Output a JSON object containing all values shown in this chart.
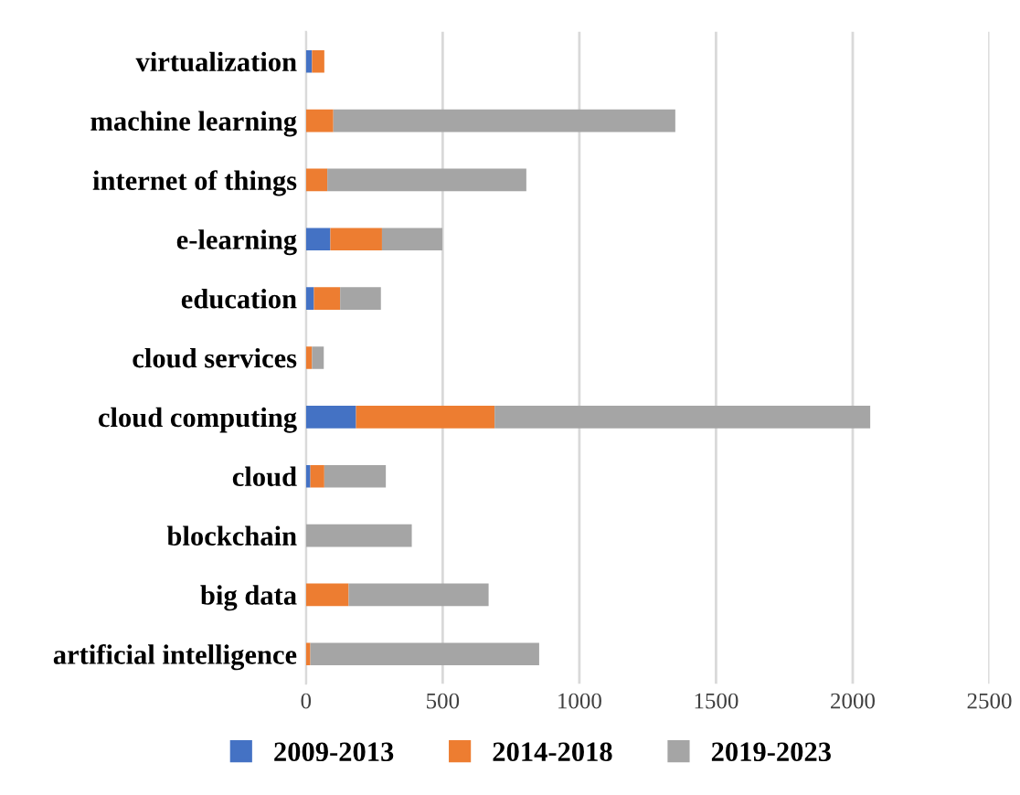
{
  "chart_data": {
    "type": "bar",
    "orientation": "horizontal",
    "stacked": true,
    "categories": [
      "virtualization",
      "machine learning",
      "internet of things",
      "e-learning",
      "education",
      "cloud services",
      "cloud computing",
      "cloud",
      "blockchain",
      "big data",
      "artificial intelligence"
    ],
    "series": [
      {
        "name": "2009-2013",
        "color": "#4472c4",
        "values": [
          22,
          0,
          0,
          89,
          29,
          0,
          183,
          16,
          0,
          0,
          0
        ]
      },
      {
        "name": "2014-2018",
        "color": "#ed7d31",
        "values": [
          45,
          100,
          78,
          189,
          96,
          22,
          507,
          51,
          0,
          156,
          16
        ]
      },
      {
        "name": "2019-2023",
        "color": "#a5a5a5",
        "values": [
          0,
          1251,
          728,
          221,
          149,
          43,
          1374,
          225,
          387,
          512,
          837
        ]
      }
    ],
    "xlim": [
      0,
      2500
    ],
    "xticks": [
      0,
      500,
      1000,
      1500,
      2000,
      2500
    ],
    "grid": "x",
    "legend": "bottom"
  }
}
